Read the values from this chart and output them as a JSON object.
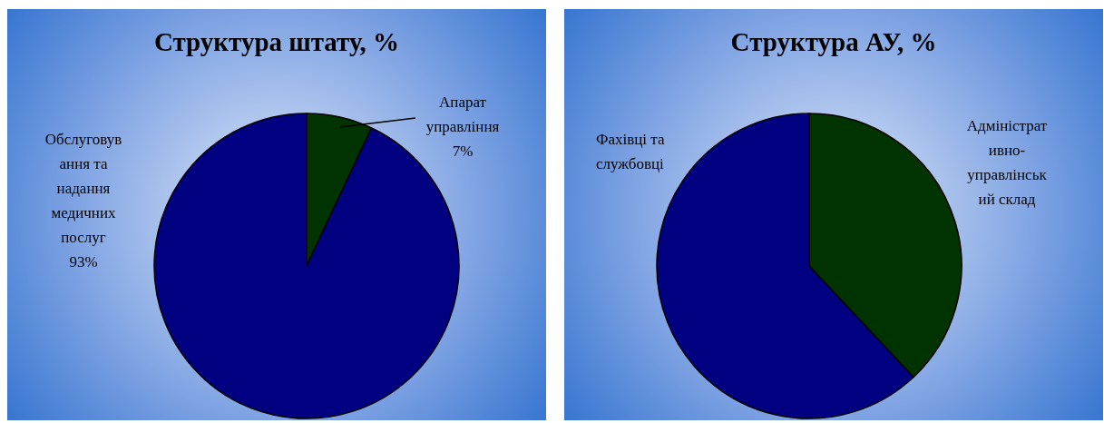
{
  "chart_data": [
    {
      "type": "pie",
      "title": "Структура штату, %",
      "categories": [
        "Апарат управління",
        "Обслуговування та надання медичних послуг"
      ],
      "values": [
        7,
        93
      ],
      "colors": [
        "#003300",
        "#000080"
      ],
      "value_labels": [
        "7%",
        "93%"
      ],
      "legend": false
    },
    {
      "type": "pie",
      "title": "Структура АУ, %",
      "categories": [
        "Адміністративно-управлінський склад",
        "Фахівці та службовці"
      ],
      "values": [
        38,
        62
      ],
      "colors": [
        "#003300",
        "#000080"
      ],
      "legend": false
    }
  ]
}
